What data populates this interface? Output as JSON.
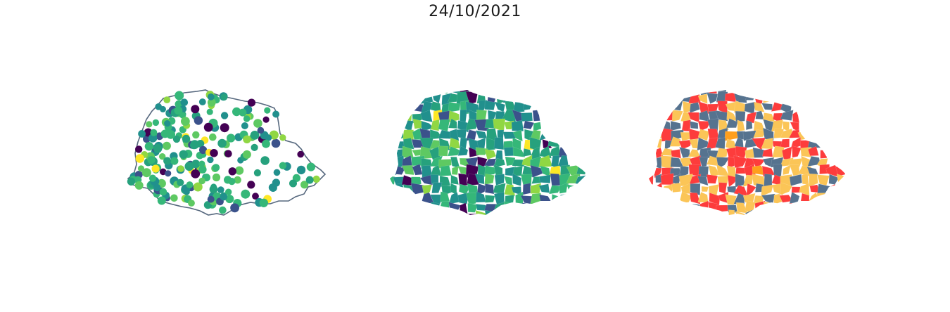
{
  "figure": {
    "title": "24/10/2021"
  },
  "palette": {
    "viridis": [
      "#440154",
      "#3b528b",
      "#21908d",
      "#26a17d",
      "#35b779",
      "#5ec962",
      "#90d743",
      "#fde725"
    ],
    "categories": [
      "#fd3c3c",
      "#fbc557",
      "#56738f",
      "#ff9f1c"
    ],
    "outline": "#56687e"
  },
  "panels": [
    {
      "id": "points",
      "kind": "proportional-points"
    },
    {
      "id": "choropleth",
      "kind": "continuous-choropleth"
    },
    {
      "id": "categories",
      "kind": "categorical-choropleth"
    }
  ]
}
